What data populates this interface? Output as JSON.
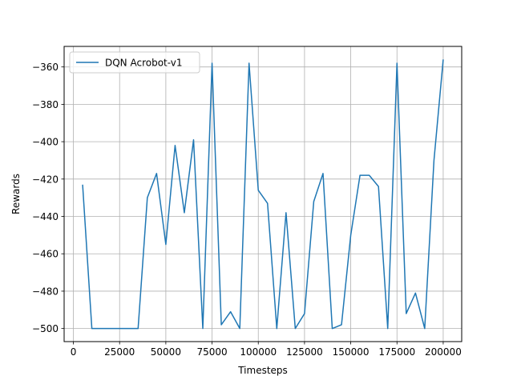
{
  "chart_data": {
    "type": "line",
    "title": "",
    "xlabel": "Timesteps",
    "ylabel": "Rewards",
    "xlim": [
      -5000,
      210000
    ],
    "ylim": [
      -507,
      -349
    ],
    "xticks": [
      0,
      25000,
      50000,
      75000,
      100000,
      125000,
      150000,
      175000,
      200000
    ],
    "xtick_labels": [
      "0",
      "25000",
      "50000",
      "75000",
      "100000",
      "125000",
      "150000",
      "175000",
      "200000"
    ],
    "yticks": [
      -500,
      -480,
      -460,
      -440,
      -420,
      -400,
      -380,
      -360
    ],
    "ytick_labels": [
      "−500",
      "−480",
      "−460",
      "−440",
      "−420",
      "−400",
      "−380",
      "−360"
    ],
    "grid": true,
    "legend": "upper-left",
    "series": [
      {
        "name": "DQN Acrobot-v1",
        "color": "#1f77b4",
        "x": [
          5000,
          10000,
          15000,
          20000,
          25000,
          30000,
          35000,
          40000,
          45000,
          50000,
          55000,
          60000,
          65000,
          70000,
          75000,
          80000,
          85000,
          90000,
          95000,
          100000,
          105000,
          110000,
          115000,
          120000,
          125000,
          130000,
          135000,
          140000,
          145000,
          150000,
          155000,
          160000,
          165000,
          170000,
          175000,
          180000,
          185000,
          190000,
          195000,
          200000
        ],
        "y": [
          -423,
          -500,
          -500,
          -500,
          -500,
          -500,
          -500,
          -430,
          -417,
          -455,
          -402,
          -438,
          -399,
          -500,
          -358,
          -498,
          -491,
          -500,
          -358,
          -426,
          -433,
          -500,
          -438,
          -500,
          -492,
          -432,
          -417,
          -500,
          -498,
          -450,
          -418,
          -418,
          -424,
          -500,
          -358,
          -492,
          -481,
          -500,
          -410,
          -356
        ]
      }
    ]
  }
}
